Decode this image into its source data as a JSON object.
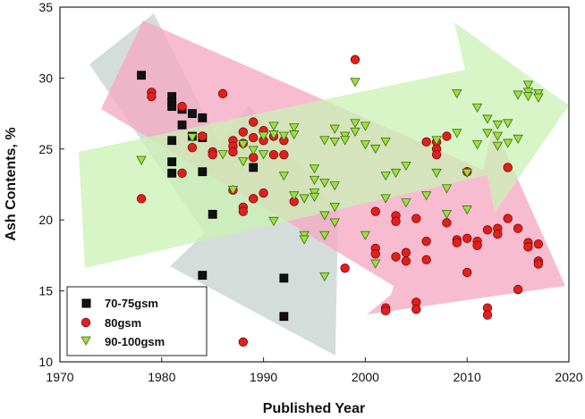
{
  "chart_data": {
    "type": "scatter",
    "xlabel": "Published Year",
    "ylabel": "Ash Contents, %",
    "xlim": [
      1970,
      2020
    ],
    "ylim": [
      10,
      35
    ],
    "x_ticks": [
      1970,
      1980,
      1990,
      2000,
      2010,
      2020
    ],
    "y_ticks": [
      10,
      15,
      20,
      25,
      30,
      35
    ],
    "grid": false,
    "legend_position": "bottom-left",
    "colors": {
      "series_70_75": "#111111",
      "series_80": "#e0201c",
      "series_90_100": "#9be040",
      "arrow_gray": "#c7d2cd",
      "arrow_pink": "#f6a6c2",
      "arrow_green": "#c9f2b4"
    },
    "series": [
      {
        "name": "70-75gsm",
        "marker": "square",
        "points": [
          [
            1978,
            30.2
          ],
          [
            1981,
            28.7
          ],
          [
            1981,
            28.3
          ],
          [
            1981,
            28.0
          ],
          [
            1982,
            27.8
          ],
          [
            1982,
            26.7
          ],
          [
            1983,
            27.5
          ],
          [
            1984,
            27.2
          ],
          [
            1983,
            25.9
          ],
          [
            1981,
            25.6
          ],
          [
            1984,
            25.8
          ],
          [
            1981,
            24.1
          ],
          [
            1981,
            23.3
          ],
          [
            1984,
            23.4
          ],
          [
            1985,
            20.4
          ],
          [
            1989,
            23.7
          ],
          [
            1984,
            16.1
          ],
          [
            1992,
            15.9
          ],
          [
            1992,
            13.2
          ]
        ]
      },
      {
        "name": "80gsm",
        "marker": "circle",
        "points": [
          [
            1979,
            29.0
          ],
          [
            1979,
            28.7
          ],
          [
            1982,
            28.0
          ],
          [
            1983,
            25.1
          ],
          [
            1984,
            25.9
          ],
          [
            1985,
            24.8
          ],
          [
            1985,
            24.6
          ],
          [
            1986,
            28.9
          ],
          [
            1987,
            25.6
          ],
          [
            1987,
            25.2
          ],
          [
            1987,
            24.8
          ],
          [
            1987,
            22.1
          ],
          [
            1988,
            26.2
          ],
          [
            1988,
            25.4
          ],
          [
            1988,
            20.9
          ],
          [
            1988,
            20.6
          ],
          [
            1988,
            11.4
          ],
          [
            1989,
            26.9
          ],
          [
            1989,
            25.8
          ],
          [
            1989,
            24.4
          ],
          [
            1989,
            21.5
          ],
          [
            1990,
            26.3
          ],
          [
            1990,
            25.6
          ],
          [
            1990,
            21.9
          ],
          [
            1991,
            25.9
          ],
          [
            1991,
            24.6
          ],
          [
            1992,
            25.6
          ],
          [
            1992,
            24.6
          ],
          [
            1993,
            21.3
          ],
          [
            1982,
            23.3
          ],
          [
            1978,
            21.5
          ],
          [
            1998,
            16.6
          ],
          [
            1999,
            31.3
          ],
          [
            2001,
            20.6
          ],
          [
            2001,
            18.0
          ],
          [
            2001,
            17.6
          ],
          [
            2002,
            13.8
          ],
          [
            2002,
            13.6
          ],
          [
            2003,
            20.3
          ],
          [
            2003,
            19.9
          ],
          [
            2003,
            17.4
          ],
          [
            2004,
            17.7
          ],
          [
            2004,
            17.1
          ],
          [
            2005,
            20.1
          ],
          [
            2005,
            14.2
          ],
          [
            2005,
            13.7
          ],
          [
            2006,
            25.5
          ],
          [
            2006,
            18.5
          ],
          [
            2006,
            17.2
          ],
          [
            2007,
            25.5
          ],
          [
            2007,
            25.0
          ],
          [
            2007,
            24.6
          ],
          [
            2008,
            25.9
          ],
          [
            2008,
            19.8
          ],
          [
            2009,
            18.6
          ],
          [
            2009,
            18.4
          ],
          [
            2010,
            18.7
          ],
          [
            2010,
            16.3
          ],
          [
            2010,
            23.4
          ],
          [
            2011,
            18.5
          ],
          [
            2011,
            18.2
          ],
          [
            2012,
            19.3
          ],
          [
            2012,
            13.8
          ],
          [
            2012,
            13.3
          ],
          [
            2013,
            19.4
          ],
          [
            2013,
            19.0
          ],
          [
            2014,
            23.7
          ],
          [
            2014,
            20.1
          ],
          [
            2015,
            19.4
          ],
          [
            2015,
            15.1
          ],
          [
            2016,
            18.4
          ],
          [
            2016,
            18.1
          ],
          [
            2017,
            18.3
          ],
          [
            2017,
            17.1
          ],
          [
            2017,
            16.9
          ]
        ]
      },
      {
        "name": "90-100gsm",
        "marker": "triangle-down",
        "points": [
          [
            1978,
            24.2
          ],
          [
            1983,
            25.8
          ],
          [
            1986,
            24.6
          ],
          [
            1987,
            22.1
          ],
          [
            1988,
            25.3
          ],
          [
            1988,
            24.1
          ],
          [
            1989,
            24.9
          ],
          [
            1990,
            25.9
          ],
          [
            1990,
            24.6
          ],
          [
            1991,
            26.6
          ],
          [
            1991,
            26.0
          ],
          [
            1991,
            19.9
          ],
          [
            1992,
            25.9
          ],
          [
            1992,
            23.1
          ],
          [
            1993,
            26.5
          ],
          [
            1993,
            26.0
          ],
          [
            1993,
            21.7
          ],
          [
            1994,
            21.5
          ],
          [
            1994,
            18.9
          ],
          [
            1994,
            18.6
          ],
          [
            1995,
            23.6
          ],
          [
            1995,
            22.8
          ],
          [
            1995,
            21.9
          ],
          [
            1995,
            21.6
          ],
          [
            1996,
            25.6
          ],
          [
            1996,
            22.6
          ],
          [
            1996,
            20.3
          ],
          [
            1996,
            18.9
          ],
          [
            1996,
            16.0
          ],
          [
            1997,
            26.4
          ],
          [
            1997,
            25.5
          ],
          [
            1997,
            22.4
          ],
          [
            1997,
            20.9
          ],
          [
            1997,
            19.8
          ],
          [
            1998,
            25.9
          ],
          [
            1998,
            25.6
          ],
          [
            1999,
            29.7
          ],
          [
            1999,
            26.8
          ],
          [
            1999,
            26.2
          ],
          [
            2000,
            26.6
          ],
          [
            2000,
            25.3
          ],
          [
            2000,
            18.9
          ],
          [
            2001,
            25.0
          ],
          [
            2001,
            16.9
          ],
          [
            2002,
            25.5
          ],
          [
            2002,
            23.1
          ],
          [
            2002,
            21.5
          ],
          [
            2003,
            23.3
          ],
          [
            2004,
            23.8
          ],
          [
            2004,
            21.2
          ],
          [
            2006,
            21.7
          ],
          [
            2007,
            25.6
          ],
          [
            2007,
            23.3
          ],
          [
            2008,
            22.2
          ],
          [
            2008,
            20.4
          ],
          [
            2009,
            28.9
          ],
          [
            2009,
            26.1
          ],
          [
            2010,
            23.3
          ],
          [
            2010,
            20.7
          ],
          [
            2011,
            25.3
          ],
          [
            2012,
            26.1
          ],
          [
            2013,
            26.7
          ],
          [
            2013,
            25.9
          ],
          [
            2013,
            25.2
          ],
          [
            2014,
            26.8
          ],
          [
            2014,
            25.4
          ],
          [
            2015,
            28.8
          ],
          [
            2015,
            25.7
          ],
          [
            2016,
            29.5
          ],
          [
            2016,
            29.0
          ],
          [
            2016,
            28.7
          ],
          [
            2017,
            28.9
          ],
          [
            2017,
            28.6
          ],
          [
            2012,
            27.1
          ],
          [
            2011,
            27.9
          ]
        ]
      }
    ]
  }
}
